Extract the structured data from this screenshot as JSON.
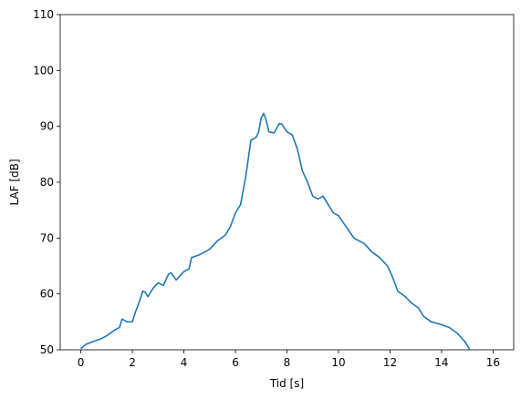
{
  "chart_data": {
    "type": "line",
    "xlabel": "Tid [s]",
    "ylabel": "LAF [dB]",
    "x": [
      0,
      0.2,
      0.5,
      0.8,
      1.0,
      1.3,
      1.5,
      1.6,
      1.8,
      2.0,
      2.1,
      2.3,
      2.4,
      2.5,
      2.6,
      2.8,
      3.0,
      3.2,
      3.4,
      3.5,
      3.7,
      4.0,
      4.2,
      4.3,
      4.6,
      4.8,
      5.0,
      5.3,
      5.6,
      5.8,
      6.0,
      6.2,
      6.4,
      6.6,
      6.8,
      6.9,
      7.0,
      7.1,
      7.2,
      7.3,
      7.5,
      7.7,
      7.8,
      8.0,
      8.2,
      8.4,
      8.6,
      8.8,
      9.0,
      9.2,
      9.4,
      9.6,
      9.8,
      10.0,
      10.3,
      10.6,
      10.8,
      11.0,
      11.3,
      11.6,
      11.9,
      12.1,
      12.3,
      12.6,
      12.8,
      13.1,
      13.3,
      13.6,
      14.0,
      14.3,
      14.6,
      14.9,
      15.1
    ],
    "series": [
      {
        "color": "#1f77b4",
        "values": [
          50.2,
          51,
          51.5,
          52,
          52.5,
          53.5,
          54,
          55.5,
          55,
          55,
          56.5,
          59,
          60.5,
          60.3,
          59.5,
          61,
          62,
          61.5,
          63.5,
          63.8,
          62.5,
          64,
          64.5,
          66.5,
          67,
          67.5,
          68,
          69.5,
          70.5,
          72,
          74.5,
          76,
          81,
          87.5,
          88,
          89,
          91.5,
          92.3,
          91,
          89,
          88.8,
          90.5,
          90.4,
          89,
          88.5,
          86,
          82,
          80,
          77.5,
          77,
          77.5,
          76,
          74.5,
          74,
          72,
          70,
          69.5,
          69,
          67.5,
          66.5,
          65,
          63,
          60.5,
          59.5,
          58.5,
          57.5,
          56,
          55,
          54.5,
          54,
          53,
          51.5,
          50
        ]
      }
    ],
    "xlim": [
      -0.8,
      16.8
    ],
    "ylim": [
      50,
      110
    ],
    "xticks": [
      0,
      2,
      4,
      6,
      8,
      10,
      12,
      14,
      16
    ],
    "yticks": [
      50,
      60,
      70,
      80,
      90,
      100,
      110
    ]
  }
}
